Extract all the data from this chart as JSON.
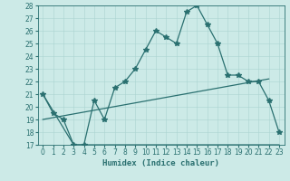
{
  "xlabel": "Humidex (Indice chaleur)",
  "xlim": [
    -0.5,
    23.5
  ],
  "ylim": [
    17,
    28
  ],
  "yticks": [
    17,
    18,
    19,
    20,
    21,
    22,
    23,
    24,
    25,
    26,
    27,
    28
  ],
  "xticks": [
    0,
    1,
    2,
    3,
    4,
    5,
    6,
    7,
    8,
    9,
    10,
    11,
    12,
    13,
    14,
    15,
    16,
    17,
    18,
    19,
    20,
    21,
    22,
    23
  ],
  "bg_color": "#cceae7",
  "line_color": "#2a7070",
  "grid_color": "#aad4d0",
  "line1_x": [
    0,
    1,
    2,
    3,
    4,
    5,
    6,
    7,
    8,
    9,
    10,
    11,
    12,
    13,
    14,
    15,
    16,
    17,
    18,
    19,
    20,
    21,
    22,
    23
  ],
  "line1_y": [
    21.0,
    19.5,
    19.0,
    17.0,
    17.0,
    20.5,
    19.0,
    21.5,
    22.0,
    23.0,
    24.5,
    26.0,
    25.5,
    25.0,
    27.5,
    28.0,
    26.5,
    25.0,
    22.5,
    22.5,
    22.0,
    22.0,
    20.5,
    18.0
  ],
  "line2_x": [
    0,
    3,
    23
  ],
  "line2_y": [
    21.0,
    17.0,
    17.0
  ],
  "line3_x": [
    0,
    22
  ],
  "line3_y": [
    19.0,
    22.2
  ],
  "marker": "*",
  "markersize": 4,
  "linewidth": 0.9,
  "xlabel_fontsize": 6.5,
  "tick_fontsize": 5.5
}
